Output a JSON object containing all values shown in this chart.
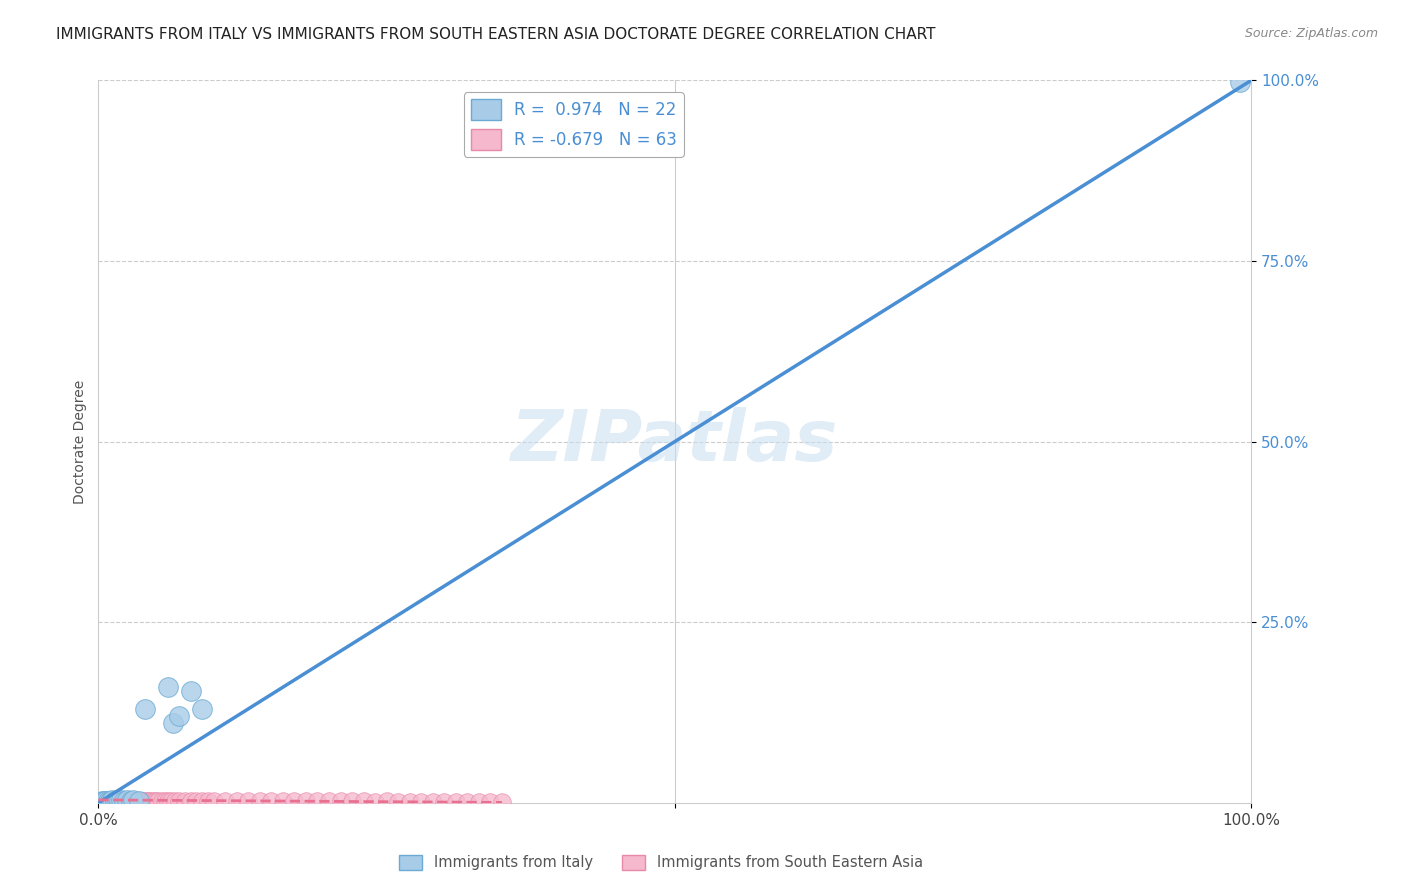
{
  "title": "IMMIGRANTS FROM ITALY VS IMMIGRANTS FROM SOUTH EASTERN ASIA DOCTORATE DEGREE CORRELATION CHART",
  "source": "Source: ZipAtlas.com",
  "ylabel": "Doctorate Degree",
  "xlim": [
    0,
    1
  ],
  "ylim": [
    0,
    1
  ],
  "xtick_positions": [
    0,
    0.5,
    1.0
  ],
  "xtick_labels": [
    "0.0%",
    "",
    "100.0%"
  ],
  "ytick_positions": [
    0.25,
    0.5,
    0.75,
    1.0
  ],
  "ytick_labels": [
    "25.0%",
    "50.0%",
    "75.0%",
    "100.0%"
  ],
  "background_color": "#ffffff",
  "grid_color": "#cccccc",
  "watermark": "ZIPatlas",
  "legend_label_1": "R =  0.974   N = 22",
  "legend_label_2": "R = -0.679   N = 63",
  "italy_color": "#a8cce8",
  "italy_edge": "#6aaad4",
  "sea_color": "#f5b8cc",
  "sea_edge": "#e888aa",
  "italy_line_color": "#4a8fd4",
  "sea_line_color": "#e87090",
  "italy_points": [
    [
      0.003,
      0.002
    ],
    [
      0.005,
      0.003
    ],
    [
      0.006,
      0.002
    ],
    [
      0.008,
      0.003
    ],
    [
      0.01,
      0.003
    ],
    [
      0.012,
      0.004
    ],
    [
      0.014,
      0.003
    ],
    [
      0.016,
      0.004
    ],
    [
      0.018,
      0.003
    ],
    [
      0.02,
      0.004
    ],
    [
      0.022,
      0.003
    ],
    [
      0.025,
      0.004
    ],
    [
      0.028,
      0.003
    ],
    [
      0.03,
      0.004
    ],
    [
      0.035,
      0.003
    ],
    [
      0.04,
      0.13
    ],
    [
      0.06,
      0.16
    ],
    [
      0.065,
      0.11
    ],
    [
      0.07,
      0.12
    ],
    [
      0.08,
      0.155
    ],
    [
      0.09,
      0.13
    ],
    [
      0.99,
      0.998
    ]
  ],
  "sea_points": [
    [
      0.002,
      0.003
    ],
    [
      0.004,
      0.002
    ],
    [
      0.006,
      0.003
    ],
    [
      0.008,
      0.002
    ],
    [
      0.01,
      0.003
    ],
    [
      0.012,
      0.002
    ],
    [
      0.014,
      0.003
    ],
    [
      0.016,
      0.002
    ],
    [
      0.018,
      0.003
    ],
    [
      0.02,
      0.002
    ],
    [
      0.022,
      0.003
    ],
    [
      0.024,
      0.002
    ],
    [
      0.026,
      0.003
    ],
    [
      0.028,
      0.002
    ],
    [
      0.03,
      0.003
    ],
    [
      0.032,
      0.002
    ],
    [
      0.034,
      0.003
    ],
    [
      0.036,
      0.002
    ],
    [
      0.038,
      0.003
    ],
    [
      0.04,
      0.002
    ],
    [
      0.042,
      0.003
    ],
    [
      0.044,
      0.002
    ],
    [
      0.046,
      0.003
    ],
    [
      0.048,
      0.002
    ],
    [
      0.05,
      0.003
    ],
    [
      0.052,
      0.002
    ],
    [
      0.055,
      0.003
    ],
    [
      0.058,
      0.002
    ],
    [
      0.06,
      0.003
    ],
    [
      0.063,
      0.002
    ],
    [
      0.066,
      0.003
    ],
    [
      0.07,
      0.002
    ],
    [
      0.075,
      0.003
    ],
    [
      0.08,
      0.002
    ],
    [
      0.085,
      0.003
    ],
    [
      0.09,
      0.002
    ],
    [
      0.095,
      0.003
    ],
    [
      0.1,
      0.002
    ],
    [
      0.11,
      0.003
    ],
    [
      0.12,
      0.002
    ],
    [
      0.13,
      0.003
    ],
    [
      0.14,
      0.002
    ],
    [
      0.15,
      0.002
    ],
    [
      0.16,
      0.002
    ],
    [
      0.17,
      0.002
    ],
    [
      0.18,
      0.002
    ],
    [
      0.19,
      0.002
    ],
    [
      0.2,
      0.002
    ],
    [
      0.21,
      0.002
    ],
    [
      0.22,
      0.002
    ],
    [
      0.23,
      0.002
    ],
    [
      0.24,
      0.001
    ],
    [
      0.25,
      0.002
    ],
    [
      0.26,
      0.001
    ],
    [
      0.27,
      0.001
    ],
    [
      0.28,
      0.001
    ],
    [
      0.29,
      0.001
    ],
    [
      0.3,
      0.001
    ],
    [
      0.31,
      0.001
    ],
    [
      0.32,
      0.001
    ],
    [
      0.33,
      0.001
    ],
    [
      0.34,
      0.001
    ],
    [
      0.35,
      0.001
    ]
  ],
  "italy_line_x": [
    0.0,
    1.0
  ],
  "italy_line_y": [
    0.0,
    1.0
  ],
  "sea_line_x": [
    0.0,
    0.35
  ],
  "sea_line_y": [
    0.004,
    0.0005
  ]
}
